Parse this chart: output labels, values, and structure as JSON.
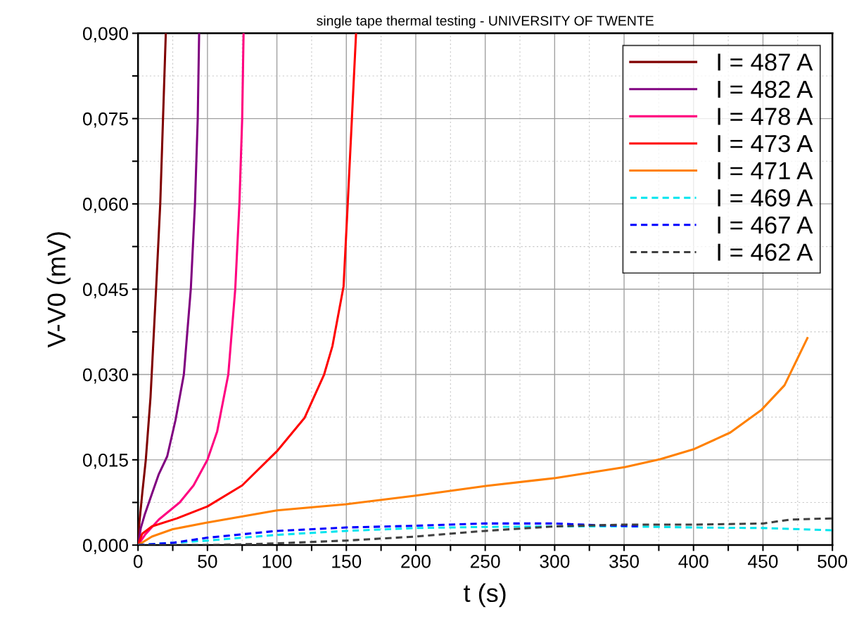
{
  "chart_data": {
    "type": "line",
    "title": "single tape thermal testing - UNIVERSITY OF TWENTE",
    "xlabel": "t (s)",
    "ylabel": "V-V0 (mV)",
    "xlim": [
      0,
      500
    ],
    "ylim": [
      0,
      0.09
    ],
    "xticks": [
      0,
      {
        "value": 25,
        "label": null
      },
      50,
      {
        "value": 75,
        "label": null
      },
      100,
      {
        "value": 125,
        "label": null
      },
      150,
      {
        "value": 175,
        "label": null
      },
      200,
      {
        "value": 225,
        "label": null
      },
      250,
      {
        "value": 275,
        "label": null
      },
      300,
      {
        "value": 325,
        "label": null
      },
      350,
      {
        "value": 375,
        "label": null
      },
      400,
      {
        "value": 425,
        "label": null
      },
      450,
      {
        "value": 475,
        "label": null
      },
      500
    ],
    "yticks": [
      {
        "value": 0,
        "label": "0,000"
      },
      {
        "value": 0.0075,
        "label": null
      },
      {
        "value": 0.015,
        "label": "0,015"
      },
      {
        "value": 0.0225,
        "label": null
      },
      {
        "value": 0.03,
        "label": "0,030"
      },
      {
        "value": 0.0375,
        "label": null
      },
      {
        "value": 0.045,
        "label": "0,045"
      },
      {
        "value": 0.0525,
        "label": null
      },
      {
        "value": 0.06,
        "label": "0,060"
      },
      {
        "value": 0.0675,
        "label": null
      },
      {
        "value": 0.075,
        "label": "0,075"
      },
      {
        "value": 0.0825,
        "label": null
      },
      {
        "value": 0.09,
        "label": "0,090"
      }
    ],
    "grid": true,
    "legend": "top right",
    "marker": "none",
    "series": [
      {
        "name": "I = 487 A",
        "color": "#800000",
        "line_style": "solid",
        "x": [
          0,
          1,
          3,
          5.6,
          9,
          13,
          16,
          18,
          20
        ],
        "values": [
          0,
          0.004,
          0.009,
          0.015,
          0.026,
          0.045,
          0.06,
          0.075,
          0.09
        ]
      },
      {
        "name": "I = 482 A",
        "color": "#800080",
        "line_style": "solid",
        "x": [
          0,
          2,
          5,
          10,
          15,
          21,
          27,
          33,
          38,
          41,
          43,
          44
        ],
        "values": [
          0,
          0.003,
          0.0055,
          0.009,
          0.0125,
          0.0156,
          0.022,
          0.03,
          0.045,
          0.06,
          0.075,
          0.09
        ]
      },
      {
        "name": "I = 478 A",
        "color": "#ff0080",
        "line_style": "solid",
        "x": [
          0,
          5,
          15,
          30,
          40,
          50,
          57,
          65,
          70,
          73,
          75,
          76
        ],
        "values": [
          0,
          0.0018,
          0.0045,
          0.0075,
          0.0105,
          0.015,
          0.02,
          0.03,
          0.045,
          0.06,
          0.075,
          0.09
        ]
      },
      {
        "name": "I = 473 A",
        "color": "#ff0000",
        "line_style": "solid",
        "x": [
          0,
          3,
          10,
          28,
          50,
          75,
          100,
          120,
          134,
          140,
          148,
          151,
          154,
          157
        ],
        "values": [
          0,
          0.002,
          0.0033,
          0.0047,
          0.0068,
          0.0105,
          0.0165,
          0.0224,
          0.03,
          0.035,
          0.0455,
          0.06,
          0.075,
          0.09
        ]
      },
      {
        "name": "I = 471 A",
        "color": "#ff8000",
        "line_style": "solid",
        "x": [
          0,
          10,
          25,
          48.6,
          100,
          150,
          200,
          250.5,
          300.6,
          350.5,
          376,
          400.6,
          426.5,
          449,
          465.5,
          482
        ],
        "values": [
          0,
          0.0015,
          0.0028,
          0.0039,
          0.0061,
          0.0072,
          0.0087,
          0.0104,
          0.0118,
          0.0137,
          0.0151,
          0.0169,
          0.0198,
          0.0238,
          0.0281,
          0.0364
        ]
      },
      {
        "name": "I = 469 A",
        "color": "#00e5ee",
        "line_style": "dashed",
        "x": [
          0,
          50,
          100,
          150,
          200,
          250,
          300,
          350,
          400,
          450,
          500
        ],
        "values": [
          0,
          0.0008,
          0.0018,
          0.0025,
          0.003,
          0.0032,
          0.0033,
          0.0033,
          0.0031,
          0.003,
          0.0026
        ]
      },
      {
        "name": "I = 467 A",
        "color": "#0000ff",
        "line_style": "dashed",
        "x": [
          0,
          25,
          50,
          100,
          150,
          200,
          250,
          300,
          330,
          362
        ],
        "values": [
          0,
          0.0004,
          0.0013,
          0.0025,
          0.0031,
          0.0034,
          0.0038,
          0.0038,
          0.0035,
          0.0033
        ]
      },
      {
        "name": "I = 462 A",
        "color": "#404040",
        "line_style": "dashed",
        "x": [
          0,
          50,
          100,
          150,
          200,
          250,
          300,
          350,
          400,
          450,
          470,
          500
        ],
        "values": [
          0,
          0,
          0.0003,
          0.0008,
          0.0015,
          0.0025,
          0.0033,
          0.0036,
          0.0036,
          0.0038,
          0.0045,
          0.0047
        ]
      }
    ]
  }
}
